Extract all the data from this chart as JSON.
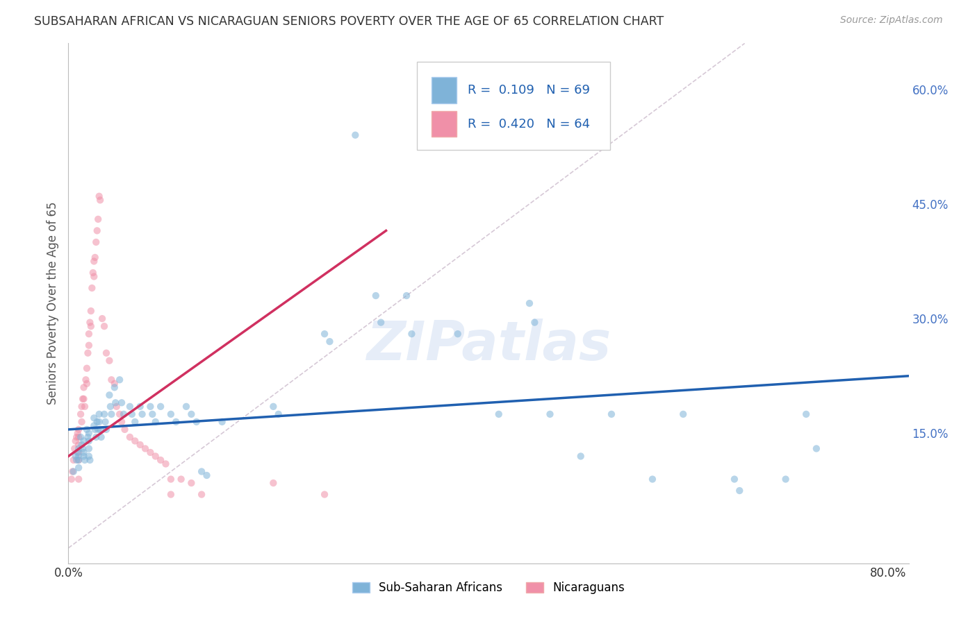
{
  "title": "SUBSAHARAN AFRICAN VS NICARAGUAN SENIORS POVERTY OVER THE AGE OF 65 CORRELATION CHART",
  "source": "Source: ZipAtlas.com",
  "ylabel_label": "Seniors Poverty Over the Age of 65",
  "right_yticks": [
    0.15,
    0.3,
    0.45,
    0.6
  ],
  "right_ytick_labels": [
    "15.0%",
    "30.0%",
    "45.0%",
    "60.0%"
  ],
  "xlim": [
    0.0,
    0.82
  ],
  "ylim": [
    -0.02,
    0.66
  ],
  "legend_labels": [
    "Sub-Saharan Africans",
    "Nicaraguans"
  ],
  "blue_scatter": [
    [
      0.005,
      0.1
    ],
    [
      0.007,
      0.12
    ],
    [
      0.008,
      0.115
    ],
    [
      0.009,
      0.125
    ],
    [
      0.01,
      0.13
    ],
    [
      0.01,
      0.12
    ],
    [
      0.01,
      0.115
    ],
    [
      0.01,
      0.105
    ],
    [
      0.012,
      0.145
    ],
    [
      0.013,
      0.135
    ],
    [
      0.014,
      0.13
    ],
    [
      0.015,
      0.14
    ],
    [
      0.015,
      0.125
    ],
    [
      0.015,
      0.12
    ],
    [
      0.016,
      0.115
    ],
    [
      0.018,
      0.155
    ],
    [
      0.019,
      0.145
    ],
    [
      0.02,
      0.15
    ],
    [
      0.02,
      0.14
    ],
    [
      0.02,
      0.13
    ],
    [
      0.02,
      0.12
    ],
    [
      0.021,
      0.115
    ],
    [
      0.025,
      0.17
    ],
    [
      0.025,
      0.16
    ],
    [
      0.026,
      0.155
    ],
    [
      0.027,
      0.145
    ],
    [
      0.028,
      0.165
    ],
    [
      0.029,
      0.155
    ],
    [
      0.03,
      0.175
    ],
    [
      0.03,
      0.165
    ],
    [
      0.031,
      0.155
    ],
    [
      0.032,
      0.145
    ],
    [
      0.035,
      0.175
    ],
    [
      0.036,
      0.165
    ],
    [
      0.037,
      0.155
    ],
    [
      0.04,
      0.2
    ],
    [
      0.041,
      0.185
    ],
    [
      0.042,
      0.175
    ],
    [
      0.045,
      0.21
    ],
    [
      0.046,
      0.19
    ],
    [
      0.05,
      0.22
    ],
    [
      0.052,
      0.19
    ],
    [
      0.054,
      0.175
    ],
    [
      0.06,
      0.185
    ],
    [
      0.062,
      0.175
    ],
    [
      0.065,
      0.165
    ],
    [
      0.07,
      0.185
    ],
    [
      0.072,
      0.175
    ],
    [
      0.08,
      0.185
    ],
    [
      0.082,
      0.175
    ],
    [
      0.085,
      0.165
    ],
    [
      0.09,
      0.185
    ],
    [
      0.1,
      0.175
    ],
    [
      0.105,
      0.165
    ],
    [
      0.115,
      0.185
    ],
    [
      0.12,
      0.175
    ],
    [
      0.125,
      0.165
    ],
    [
      0.13,
      0.1
    ],
    [
      0.135,
      0.095
    ],
    [
      0.15,
      0.165
    ],
    [
      0.2,
      0.185
    ],
    [
      0.205,
      0.175
    ],
    [
      0.25,
      0.28
    ],
    [
      0.255,
      0.27
    ],
    [
      0.28,
      0.54
    ],
    [
      0.3,
      0.33
    ],
    [
      0.305,
      0.295
    ],
    [
      0.33,
      0.33
    ],
    [
      0.335,
      0.28
    ],
    [
      0.38,
      0.28
    ],
    [
      0.42,
      0.175
    ],
    [
      0.45,
      0.32
    ],
    [
      0.455,
      0.295
    ],
    [
      0.47,
      0.175
    ],
    [
      0.5,
      0.12
    ],
    [
      0.53,
      0.175
    ],
    [
      0.57,
      0.09
    ],
    [
      0.6,
      0.175
    ],
    [
      0.65,
      0.09
    ],
    [
      0.655,
      0.075
    ],
    [
      0.7,
      0.09
    ],
    [
      0.72,
      0.175
    ],
    [
      0.73,
      0.13
    ]
  ],
  "pink_scatter": [
    [
      0.003,
      0.09
    ],
    [
      0.004,
      0.1
    ],
    [
      0.005,
      0.115
    ],
    [
      0.006,
      0.13
    ],
    [
      0.007,
      0.14
    ],
    [
      0.008,
      0.145
    ],
    [
      0.009,
      0.15
    ],
    [
      0.01,
      0.155
    ],
    [
      0.01,
      0.145
    ],
    [
      0.01,
      0.135
    ],
    [
      0.01,
      0.125
    ],
    [
      0.01,
      0.115
    ],
    [
      0.01,
      0.09
    ],
    [
      0.012,
      0.175
    ],
    [
      0.013,
      0.185
    ],
    [
      0.013,
      0.165
    ],
    [
      0.014,
      0.195
    ],
    [
      0.015,
      0.21
    ],
    [
      0.015,
      0.195
    ],
    [
      0.016,
      0.185
    ],
    [
      0.017,
      0.22
    ],
    [
      0.018,
      0.235
    ],
    [
      0.018,
      0.215
    ],
    [
      0.019,
      0.255
    ],
    [
      0.02,
      0.28
    ],
    [
      0.02,
      0.265
    ],
    [
      0.021,
      0.295
    ],
    [
      0.022,
      0.31
    ],
    [
      0.022,
      0.29
    ],
    [
      0.023,
      0.34
    ],
    [
      0.024,
      0.36
    ],
    [
      0.025,
      0.375
    ],
    [
      0.025,
      0.355
    ],
    [
      0.026,
      0.38
    ],
    [
      0.027,
      0.4
    ],
    [
      0.028,
      0.415
    ],
    [
      0.029,
      0.43
    ],
    [
      0.03,
      0.46
    ],
    [
      0.031,
      0.455
    ],
    [
      0.033,
      0.3
    ],
    [
      0.035,
      0.29
    ],
    [
      0.037,
      0.255
    ],
    [
      0.04,
      0.245
    ],
    [
      0.042,
      0.22
    ],
    [
      0.045,
      0.215
    ],
    [
      0.047,
      0.185
    ],
    [
      0.05,
      0.175
    ],
    [
      0.052,
      0.165
    ],
    [
      0.055,
      0.155
    ],
    [
      0.06,
      0.145
    ],
    [
      0.065,
      0.14
    ],
    [
      0.07,
      0.135
    ],
    [
      0.075,
      0.13
    ],
    [
      0.08,
      0.125
    ],
    [
      0.085,
      0.12
    ],
    [
      0.09,
      0.115
    ],
    [
      0.095,
      0.11
    ],
    [
      0.1,
      0.09
    ],
    [
      0.1,
      0.07
    ],
    [
      0.11,
      0.09
    ],
    [
      0.12,
      0.085
    ],
    [
      0.13,
      0.07
    ],
    [
      0.2,
      0.085
    ],
    [
      0.25,
      0.07
    ]
  ],
  "blue_line": {
    "x0": 0.0,
    "y0": 0.155,
    "x1": 0.82,
    "y1": 0.225
  },
  "pink_line": {
    "x0": 0.0,
    "y0": 0.12,
    "x1": 0.31,
    "y1": 0.415
  },
  "diag_line": {
    "x0": 0.0,
    "y0": 0.0,
    "x1": 0.66,
    "y1": 0.66
  },
  "watermark": "ZIPatlas",
  "background_color": "#ffffff",
  "scatter_alpha": 0.55,
  "scatter_size": 55,
  "blue_color": "#7fb3d8",
  "pink_color": "#f090a8",
  "grid_color": "#dde4ef",
  "title_color": "#333333",
  "right_axis_color": "#4472c4",
  "xtick_positions": [
    0.0,
    0.1,
    0.2,
    0.3,
    0.4,
    0.5,
    0.6,
    0.7,
    0.8
  ]
}
